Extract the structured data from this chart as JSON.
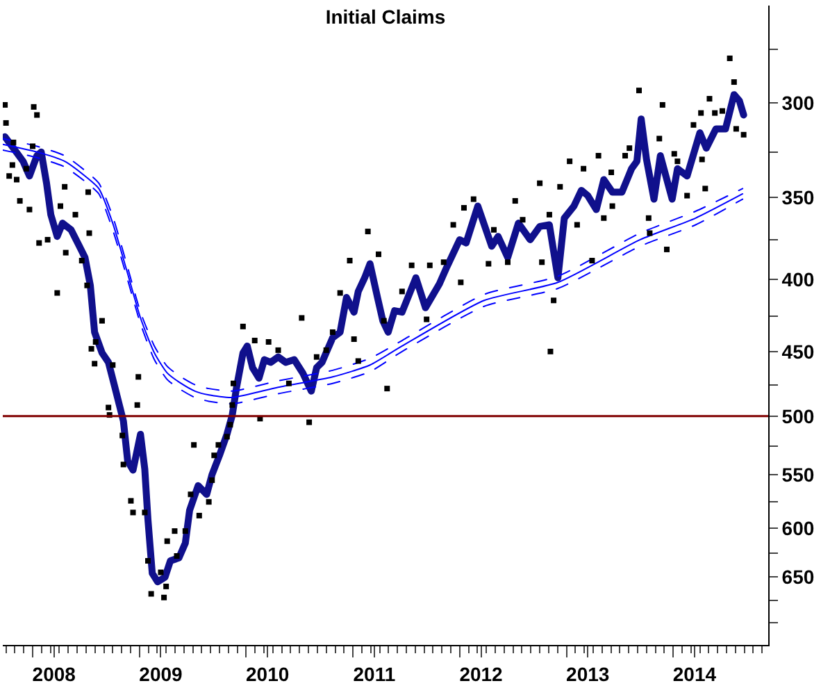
{
  "chart_data": {
    "type": "line",
    "title": "Initial Claims",
    "log": "y",
    "xlim": [
      2007.72,
      2014.89
    ],
    "ylim": [
      726,
      256
    ],
    "xticks": [
      {
        "value": 2008,
        "label": null
      },
      {
        "value": 2008.2,
        "label": "2008"
      },
      {
        "value": 2009,
        "label": null
      },
      {
        "value": 2009.2,
        "label": "2009"
      },
      {
        "value": 2010,
        "label": null
      },
      {
        "value": 2010.2,
        "label": "2010"
      },
      {
        "value": 2011,
        "label": null
      },
      {
        "value": 2011.2,
        "label": "2011"
      },
      {
        "value": 2012,
        "label": null
      },
      {
        "value": 2012.2,
        "label": "2012"
      },
      {
        "value": 2013,
        "label": null
      },
      {
        "value": 2013.2,
        "label": "2013"
      },
      {
        "value": 2014,
        "label": null
      },
      {
        "value": 2014.2,
        "label": "2014"
      }
    ],
    "yticks": [
      {
        "value": 275,
        "label": null
      },
      300,
      {
        "value": 325,
        "label": null
      },
      350,
      {
        "value": 375,
        "label": null
      },
      400,
      {
        "value": 425,
        "label": null
      },
      450,
      {
        "value": 475,
        "label": null
      },
      500,
      {
        "value": 525,
        "label": null
      },
      550,
      {
        "value": 575,
        "label": null
      },
      600,
      {
        "value": 625,
        "label": null
      },
      650,
      {
        "value": 675,
        "label": null
      },
      {
        "value": 700,
        "label": null
      }
    ],
    "ref_lines": [
      {
        "axis": "y",
        "value": 500,
        "color": "#800000"
      }
    ],
    "series": [
      {
        "type": "scatter",
        "marker": "square",
        "color": "#000000",
        "x": [
          2007.74,
          2008.01,
          2008.04,
          2007.75,
          2007.82,
          2008.0,
          2007.81,
          2007.94,
          2007.78,
          2007.85,
          2008.3,
          2008.52,
          2007.88,
          2008.26,
          2007.97,
          2008.4,
          2008.06,
          2008.14,
          2008.53,
          2008.31,
          2008.46,
          2008.51,
          2008.23,
          2008.65,
          2008.59,
          2008.55,
          2008.58,
          2008.75,
          2008.99,
          2008.71,
          2008.72,
          2008.98,
          2008.84,
          2008.85,
          2008.92,
          2008.94,
          2009.05,
          2009.08,
          2009.11,
          2009.23,
          2009.25,
          2009.2,
          2009.33,
          2009.43,
          2009.26,
          2009.35,
          2009.56,
          2009.65,
          2009.48,
          2009.51,
          2009.68,
          2009.74,
          2009.7,
          2009.82,
          2009.85,
          2009.87,
          2009.88,
          2010.08,
          2010.21,
          2010.3,
          2010.13,
          2010.59,
          2010.66,
          2010.75,
          2011.01,
          2011.32,
          2011.05,
          2010.4,
          2011.14,
          2010.52,
          2009.97,
          2010.81,
          2010.88,
          2010.97,
          2011.24,
          2011.46,
          2011.29,
          2011.55,
          2011.69,
          2011.72,
          2011.85,
          2012.01,
          2011.94,
          2012.04,
          2012.13,
          2012.32,
          2012.27,
          2012.45,
          2012.52,
          2012.59,
          2012.75,
          2012.77,
          2012.84,
          2012.88,
          2012.94,
          2013.03,
          2013.1,
          2013.16,
          2013.24,
          2013.3,
          2013.35,
          2013.42,
          2013.43,
          2013.55,
          2013.59,
          2013.68,
          2013.77,
          2013.78,
          2013.87,
          2013.9,
          2013.94,
          2014.01,
          2014.04,
          2014.13,
          2014.19,
          2014.26,
          2014.27,
          2014.3,
          2014.34,
          2014.39,
          2014.46,
          2014.53,
          2014.57,
          2014.59,
          2014.66,
          2012.85
        ],
        "values": [
          301,
          302,
          306,
          310,
          320,
          322,
          332,
          334,
          338,
          340,
          344,
          347,
          352,
          355,
          357,
          360,
          377,
          375,
          371,
          383,
          388,
          404,
          409,
          428,
          443,
          448,
          459,
          460,
          469,
          493,
          499,
          491,
          516,
          541,
          574,
          585,
          585,
          633,
          668,
          672,
          660,
          645,
          603,
          603,
          613,
          628,
          588,
          575,
          568,
          524,
          555,
          524,
          533,
          517,
          507,
          491,
          474,
          442,
          443,
          449,
          502,
          505,
          454,
          449,
          441,
          478,
          457,
          474,
          370,
          426,
          432,
          436,
          409,
          388,
          384,
          408,
          428,
          391,
          427,
          391,
          389,
          402,
          366,
          356,
          351,
          369,
          390,
          389,
          352,
          363,
          342,
          389,
          360,
          414,
          344,
          330,
          366,
          334,
          388,
          327,
          362,
          336,
          355,
          327,
          323,
          294,
          362,
          371,
          318,
          301,
          381,
          326,
          330,
          349,
          311,
          305,
          329,
          345,
          298,
          305,
          304,
          279,
          290,
          313,
          316,
          450
        ]
      },
      {
        "color": "#10108c",
        "x": [
          2007.74,
          2007.82,
          2007.91,
          2007.97,
          2008.04,
          2008.08,
          2008.13,
          2008.17,
          2008.23,
          2008.28,
          2008.36,
          2008.43,
          2008.49,
          2008.54,
          2008.58,
          2008.65,
          2008.71,
          2008.77,
          2008.85,
          2008.89,
          2008.94,
          2009.01,
          2009.05,
          2009.08,
          2009.12,
          2009.17,
          2009.24,
          2009.29,
          2009.37,
          2009.43,
          2009.47,
          2009.55,
          2009.63,
          2009.68,
          2009.75,
          2009.82,
          2009.87,
          2009.91,
          2009.97,
          2010.01,
          2010.06,
          2010.12,
          2010.17,
          2010.23,
          2010.3,
          2010.37,
          2010.45,
          2010.53,
          2010.61,
          2010.66,
          2010.71,
          2010.81,
          2010.88,
          2010.94,
          2011.01,
          2011.05,
          2011.11,
          2011.16,
          2011.23,
          2011.28,
          2011.33,
          2011.39,
          2011.46,
          2011.59,
          2011.68,
          2011.81,
          2011.88,
          2012.0,
          2012.06,
          2012.17,
          2012.3,
          2012.36,
          2012.45,
          2012.55,
          2012.66,
          2012.75,
          2012.84,
          2012.92,
          2012.98,
          2013.07,
          2013.14,
          2013.2,
          2013.28,
          2013.35,
          2013.43,
          2013.52,
          2013.61,
          2013.66,
          2013.7,
          2013.75,
          2013.82,
          2013.88,
          2013.99,
          2014.04,
          2014.13,
          2014.25,
          2014.31,
          2014.4,
          2014.49,
          2014.57,
          2014.62,
          2014.66
        ],
        "values": [
          317,
          323,
          330,
          338,
          327,
          325,
          342,
          360,
          373,
          365,
          369,
          378,
          386,
          404,
          436,
          451,
          458,
          477,
          504,
          538,
          546,
          515,
          545,
          592,
          646,
          655,
          650,
          633,
          630,
          615,
          583,
          560,
          568,
          550,
          533,
          515,
          499,
          477,
          451,
          446,
          462,
          470,
          456,
          458,
          454,
          458,
          456,
          466,
          480,
          462,
          458,
          440,
          436,
          412,
          422,
          408,
          399,
          390,
          412,
          428,
          436,
          421,
          422,
          399,
          419,
          403,
          392,
          375,
          377,
          355,
          379,
          373,
          386,
          365,
          375,
          367,
          366,
          399,
          362,
          355,
          346,
          349,
          357,
          340,
          347,
          347,
          334,
          330,
          308,
          329,
          351,
          327,
          351,
          334,
          338,
          315,
          323,
          313,
          313,
          296,
          299,
          306
        ]
      },
      {
        "color": "#0000ff",
        "line_style": "solid",
        "x": [
          2007.72,
          2008.04,
          2008.3,
          2008.49,
          2008.62,
          2008.75,
          2008.88,
          2009.01,
          2009.14,
          2009.26,
          2009.39,
          2009.52,
          2009.65,
          2009.87,
          2010.3,
          2010.81,
          2011.16,
          2011.46,
          2012.23,
          2012.92,
          2013.69,
          2014.21,
          2014.65
        ],
        "values": [
          321,
          325,
          330,
          338,
          345,
          365,
          394,
          426,
          451,
          466,
          474,
          480,
          483,
          485,
          477,
          469,
          460,
          446,
          414,
          402,
          375,
          362,
          348
        ]
      },
      {
        "color": "#0000ff",
        "line_style": "dashed",
        "x": [
          2007.72,
          2008.04,
          2008.3,
          2008.49,
          2008.62,
          2008.75,
          2008.88,
          2009.01,
          2009.14,
          2009.26,
          2009.39,
          2009.52,
          2009.65,
          2009.87,
          2010.3,
          2010.81,
          2011.16,
          2011.46,
          2012.23,
          2012.92,
          2013.69,
          2014.21,
          2014.65
        ],
        "values": [
          318,
          322,
          327,
          335,
          342,
          361,
          390,
          422,
          446,
          461,
          469,
          475,
          478,
          480,
          472,
          464,
          455,
          442,
          410,
          398,
          371,
          358,
          345
        ]
      },
      {
        "color": "#0000ff",
        "line_style": "dashed",
        "x": [
          2007.72,
          2008.04,
          2008.3,
          2008.49,
          2008.62,
          2008.75,
          2008.88,
          2009.01,
          2009.14,
          2009.26,
          2009.39,
          2009.52,
          2009.65,
          2009.87,
          2010.3,
          2010.81,
          2011.16,
          2011.46,
          2012.23,
          2012.92,
          2013.69,
          2014.21,
          2014.65
        ],
        "values": [
          324,
          328,
          333,
          341,
          348,
          369,
          398,
          430,
          456,
          471,
          479,
          485,
          488,
          490,
          482,
          474,
          465,
          450,
          418,
          406,
          379,
          366,
          351
        ]
      }
    ]
  }
}
